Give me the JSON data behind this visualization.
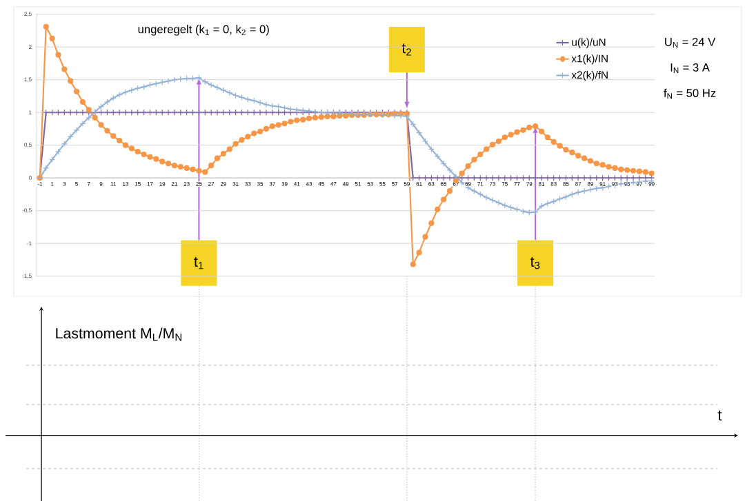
{
  "chart_data": [
    {
      "type": "line",
      "title": "ungeregelt (k$_{1}$ = 0, k$_{2}$ = 0)",
      "x": [
        -1,
        0,
        1,
        2,
        3,
        4,
        5,
        6,
        7,
        8,
        9,
        10,
        11,
        12,
        13,
        14,
        15,
        16,
        17,
        18,
        19,
        20,
        21,
        22,
        23,
        24,
        25,
        26,
        27,
        28,
        29,
        30,
        31,
        32,
        33,
        34,
        35,
        36,
        37,
        38,
        39,
        40,
        41,
        42,
        43,
        44,
        45,
        46,
        47,
        48,
        49,
        50,
        51,
        52,
        53,
        54,
        55,
        56,
        57,
        58,
        59,
        60,
        61,
        62,
        63,
        64,
        65,
        66,
        67,
        68,
        69,
        70,
        71,
        72,
        73,
        74,
        75,
        76,
        77,
        78,
        79,
        80,
        81,
        82,
        83,
        84,
        85,
        86,
        87,
        88,
        89,
        90,
        91,
        92,
        93,
        94,
        95,
        96,
        97,
        98,
        99
      ],
      "xlim": [
        -1.5,
        99.5
      ],
      "xticks": [
        -1,
        1,
        3,
        5,
        7,
        9,
        11,
        13,
        15,
        17,
        19,
        21,
        23,
        25,
        27,
        29,
        31,
        33,
        35,
        37,
        39,
        41,
        43,
        45,
        47,
        49,
        51,
        53,
        55,
        57,
        59,
        61,
        63,
        65,
        67,
        69,
        71,
        73,
        75,
        77,
        79,
        81,
        83,
        85,
        87,
        89,
        91,
        93,
        95,
        97,
        99
      ],
      "ylim": [
        -1.5,
        2.5
      ],
      "yticks": [
        {
          "value": -1.5,
          "label": "-1,5"
        },
        -1,
        {
          "value": -0.5,
          "label": "-0,5"
        },
        0,
        {
          "value": 0.5,
          "label": "0,5"
        },
        1,
        {
          "value": 1.5,
          "label": "1,5"
        },
        2,
        {
          "value": 2.5,
          "label": "2,5"
        }
      ],
      "grid": "y",
      "legend": "top right",
      "series": [
        {
          "name": "u(k)/uN",
          "color": "#8064a2",
          "marker": "cross",
          "values": [
            0,
            1,
            1,
            1,
            1,
            1,
            1,
            1,
            1,
            1,
            1,
            1,
            1,
            1,
            1,
            1,
            1,
            1,
            1,
            1,
            1,
            1,
            1,
            1,
            1,
            1,
            1,
            1,
            1,
            1,
            1,
            1,
            1,
            1,
            1,
            1,
            1,
            1,
            1,
            1,
            1,
            1,
            1,
            1,
            1,
            1,
            1,
            1,
            1,
            1,
            1,
            1,
            1,
            1,
            1,
            1,
            1,
            1,
            1,
            1,
            1,
            0,
            0,
            0,
            0,
            0,
            0,
            0,
            0,
            0,
            0,
            0,
            0,
            0,
            0,
            0,
            0,
            0,
            0,
            0,
            0,
            0,
            0,
            0,
            0,
            0,
            0,
            0,
            0,
            0,
            0,
            0,
            0,
            0,
            0,
            0,
            0,
            0,
            0,
            0,
            0
          ]
        },
        {
          "name": "x1(k)/IN",
          "color": "#f79646",
          "marker": "circle",
          "values": [
            0,
            2.31,
            2.13,
            1.88,
            1.66,
            1.48,
            1.32,
            1.16,
            1.04,
            0.92,
            0.81,
            0.72,
            0.64,
            0.57,
            0.5,
            0.45,
            0.4,
            0.36,
            0.32,
            0.29,
            0.25,
            0.22,
            0.19,
            0.17,
            0.15,
            0.13,
            0.11,
            0.09,
            0.19,
            0.3,
            0.37,
            0.44,
            0.52,
            0.58,
            0.63,
            0.68,
            0.71,
            0.75,
            0.79,
            0.81,
            0.83,
            0.86,
            0.88,
            0.89,
            0.91,
            0.92,
            0.93,
            0.94,
            0.94,
            0.95,
            0.95,
            0.96,
            0.96,
            0.96,
            0.97,
            0.97,
            0.97,
            0.97,
            0.98,
            0.98,
            0.98,
            -1.32,
            -1.14,
            -0.9,
            -0.69,
            -0.48,
            -0.33,
            -0.2,
            -0.04,
            0.07,
            0.18,
            0.28,
            0.36,
            0.44,
            0.51,
            0.56,
            0.62,
            0.66,
            0.7,
            0.73,
            0.77,
            0.79,
            0.71,
            0.62,
            0.55,
            0.49,
            0.43,
            0.39,
            0.34,
            0.3,
            0.26,
            0.22,
            0.2,
            0.17,
            0.15,
            0.13,
            0.12,
            0.11,
            0.1,
            0.09,
            0.07
          ]
        },
        {
          "name": "x2(k)/fN",
          "color": "#95b3d7",
          "marker": "cross",
          "values": [
            0,
            0.15,
            0.28,
            0.4,
            0.52,
            0.63,
            0.73,
            0.83,
            0.92,
            1.01,
            1.09,
            1.16,
            1.22,
            1.27,
            1.31,
            1.34,
            1.37,
            1.39,
            1.42,
            1.44,
            1.46,
            1.48,
            1.5,
            1.51,
            1.52,
            1.52,
            1.53,
            1.47,
            1.42,
            1.38,
            1.34,
            1.3,
            1.26,
            1.23,
            1.2,
            1.18,
            1.15,
            1.12,
            1.1,
            1.09,
            1.07,
            1.05,
            1.04,
            1.03,
            1.02,
            1.01,
            1,
            1,
            0.99,
            0.99,
            0.98,
            0.98,
            0.97,
            0.97,
            0.97,
            0.96,
            0.96,
            0.96,
            0.95,
            0.95,
            0.94,
            0.82,
            0.69,
            0.56,
            0.44,
            0.33,
            0.22,
            0.12,
            0.02,
            -0.07,
            -0.15,
            -0.2,
            -0.25,
            -0.3,
            -0.34,
            -0.38,
            -0.42,
            -0.45,
            -0.48,
            -0.51,
            -0.53,
            -0.52,
            -0.43,
            -0.39,
            -0.36,
            -0.32,
            -0.29,
            -0.25,
            -0.22,
            -0.2,
            -0.18,
            -0.16,
            -0.15,
            -0.13,
            -0.11,
            -0.09,
            -0.08,
            -0.07,
            -0.06,
            -0.05,
            -0.05
          ]
        }
      ],
      "annotations": [
        "U$_{N}$ = 24 V",
        "I$_{N}$ = 3 A",
        "f$_{N}$ = 50 Hz",
        {
          "text": "t$_{1}$",
          "x": 25,
          "y": 1.53
        },
        {
          "text": "t$_{2}$",
          "x": 59,
          "y": 1.06
        },
        {
          "text": "t$_{3}$",
          "x": 80,
          "y": 0.79
        }
      ]
    },
    {
      "type": "other",
      "ylabel": "Lastmoment M$_{L}$/M$_{N}$",
      "xlabel": "t"
    }
  ]
}
